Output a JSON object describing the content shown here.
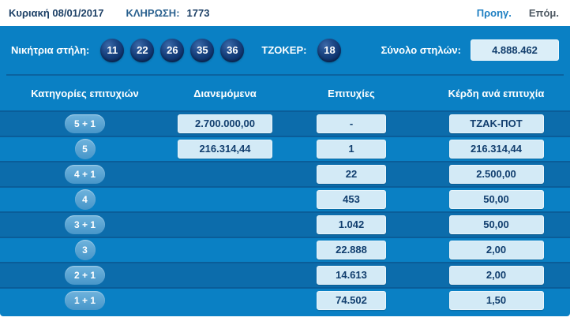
{
  "colors": {
    "panel_blue": "#0a80c4",
    "row_dark_blue": "#0c6cab",
    "ball_navy": "#123a75",
    "pill_blue": "#4796c9",
    "value_box_bg": "#d3eaf6",
    "value_text_navy": "#113e6e",
    "link_blue": "#1e7fc2",
    "link_gray": "#4d5862"
  },
  "top_bar": {
    "date": "Κυριακή 08/01/2017",
    "draw_label": "ΚΛΗΡΩΣΗ:",
    "draw_number": "1773",
    "prev_label": "Προηγ.",
    "next_label": "Επόμ."
  },
  "winning": {
    "label": "Νικήτρια στήλη:",
    "numbers": [
      "11",
      "22",
      "26",
      "35",
      "36"
    ],
    "joker_label": "ΤΖΟΚΕΡ:",
    "joker_number": "18",
    "total_label": "Σύνολο στηλών:",
    "total_value": "4.888.462"
  },
  "table": {
    "headers": [
      "Κατηγορίες επιτυχιών",
      "Διανεμόμενα",
      "Επιτυχίες",
      "Κέρδη ανά επιτυχία"
    ],
    "rows": [
      {
        "category": "5 + 1",
        "distributed": "2.700.000,00",
        "winners": "-",
        "prize": "ΤΖΑΚ-ΠΟΤ"
      },
      {
        "category": "5",
        "distributed": "216.314,44",
        "winners": "1",
        "prize": "216.314,44"
      },
      {
        "category": "4 + 1",
        "distributed": "",
        "winners": "22",
        "prize": "2.500,00"
      },
      {
        "category": "4",
        "distributed": "",
        "winners": "453",
        "prize": "50,00"
      },
      {
        "category": "3 + 1",
        "distributed": "",
        "winners": "1.042",
        "prize": "50,00"
      },
      {
        "category": "3",
        "distributed": "",
        "winners": "22.888",
        "prize": "2,00"
      },
      {
        "category": "2 + 1",
        "distributed": "",
        "winners": "14.613",
        "prize": "2,00"
      },
      {
        "category": "1 + 1",
        "distributed": "",
        "winners": "74.502",
        "prize": "1,50"
      }
    ]
  }
}
